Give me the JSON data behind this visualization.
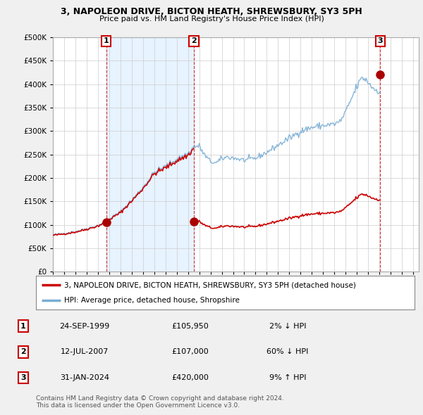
{
  "title": "3, NAPOLEON DRIVE, BICTON HEATH, SHREWSBURY, SY3 5PH",
  "subtitle": "Price paid vs. HM Land Registry's House Price Index (HPI)",
  "legend_property": "3, NAPOLEON DRIVE, BICTON HEATH, SHREWSBURY, SY3 5PH (detached house)",
  "legend_hpi": "HPI: Average price, detached house, Shropshire",
  "footnote1": "Contains HM Land Registry data © Crown copyright and database right 2024.",
  "footnote2": "This data is licensed under the Open Government Licence v3.0.",
  "sales": [
    {
      "num": 1,
      "date": "24-SEP-1999",
      "price": 105950,
      "pct": "2%",
      "dir": "↓",
      "x": 1999.73
    },
    {
      "num": 2,
      "date": "12-JUL-2007",
      "price": 107000,
      "pct": "60%",
      "dir": "↓",
      "x": 2007.53
    },
    {
      "num": 3,
      "date": "31-JAN-2024",
      "price": 420000,
      "pct": "9%",
      "dir": "↑",
      "x": 2024.08
    }
  ],
  "ylim": [
    0,
    500000
  ],
  "yticks": [
    0,
    50000,
    100000,
    150000,
    200000,
    250000,
    300000,
    350000,
    400000,
    450000,
    500000
  ],
  "xlim": [
    1995.0,
    2027.5
  ],
  "bg_color": "#f0f0f0",
  "plot_bg": "#ffffff",
  "grid_color": "#cccccc",
  "hpi_color": "#7aadd4",
  "property_color": "#cc0000",
  "sale_marker_color": "#aa0000",
  "label_box_color": "#cc0000",
  "shade_color": "#ddeeff",
  "hatch_color": "#cccccc"
}
